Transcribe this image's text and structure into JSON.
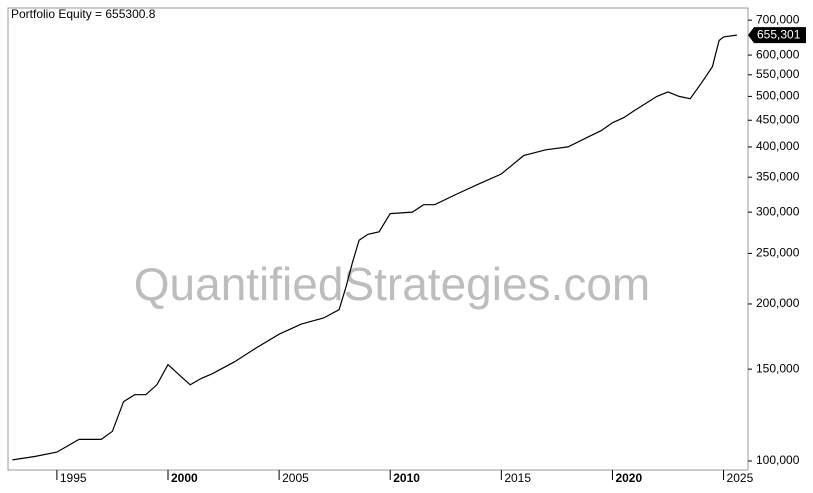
{
  "chart_data": {
    "type": "line",
    "title": "Portfolio Equity = 655300.8",
    "watermark": "QuantifiedStrategies.com",
    "log_y": true,
    "grid": false,
    "y_axis_side": "right",
    "xlim": [
      1992.8,
      2026.1
    ],
    "xticks": [
      1995,
      2000,
      2005,
      2010,
      2015,
      2020,
      2025
    ],
    "ylim": [
      96100,
      738600
    ],
    "yticks": [
      {
        "value": 100000,
        "label": "100,000"
      },
      {
        "value": 150000,
        "label": "150,000"
      },
      {
        "value": 200000,
        "label": "200,000"
      },
      {
        "value": 250000,
        "label": "250,000"
      },
      {
        "value": 300000,
        "label": "300,000"
      },
      {
        "value": 350000,
        "label": "350,000"
      },
      {
        "value": 400000,
        "label": "400,000"
      },
      {
        "value": 450000,
        "label": "450,000"
      },
      {
        "value": 500000,
        "label": "500,000"
      },
      {
        "value": 550000,
        "label": "550,000"
      },
      {
        "value": 600000,
        "label": "600,000"
      },
      {
        "value": 700000,
        "label": "700,000"
      }
    ],
    "x": [
      1993.0,
      1994.0,
      1995.0,
      1996.0,
      1997.0,
      1997.5,
      1998.0,
      1998.5,
      1999.0,
      1999.5,
      2000.0,
      2000.6,
      2001.0,
      2001.5,
      2002.0,
      2003.0,
      2004.0,
      2005.0,
      2006.0,
      2007.0,
      2007.7,
      2008.0,
      2008.3,
      2008.6,
      2009.0,
      2009.5,
      2010.0,
      2011.0,
      2011.5,
      2012.0,
      2013.0,
      2014.0,
      2015.0,
      2016.0,
      2017.0,
      2018.0,
      2019.0,
      2019.5,
      2020.0,
      2020.5,
      2021.0,
      2022.0,
      2022.5,
      2023.0,
      2023.5,
      2024.0,
      2024.5,
      2024.8,
      2025.0,
      2025.6
    ],
    "series": [
      {
        "name": "Portfolio Equity",
        "color": "#000000",
        "values": [
          100500,
          102000,
          104000,
          110000,
          110000,
          114000,
          130000,
          134000,
          134000,
          140000,
          153000,
          145000,
          140000,
          144000,
          147000,
          155000,
          165000,
          175000,
          183000,
          188000,
          195000,
          215000,
          240000,
          265000,
          272000,
          275000,
          298000,
          300000,
          310000,
          310000,
          325000,
          340000,
          355000,
          385000,
          395000,
          400000,
          420000,
          430000,
          445000,
          455000,
          470000,
          500000,
          510000,
          500000,
          495000,
          530000,
          570000,
          640000,
          650000,
          655300.8
        ],
        "value_labels": [
          null,
          null,
          null,
          null,
          null,
          null,
          null,
          null,
          null,
          null,
          null,
          null,
          null,
          null,
          null,
          null,
          null,
          null,
          null,
          null,
          null,
          null,
          null,
          null,
          null,
          null,
          null,
          null,
          null,
          null,
          null,
          null,
          null,
          null,
          null,
          null,
          null,
          null,
          null,
          null,
          null,
          null,
          null,
          null,
          null,
          null,
          null,
          null,
          null,
          "655,301"
        ]
      }
    ]
  }
}
